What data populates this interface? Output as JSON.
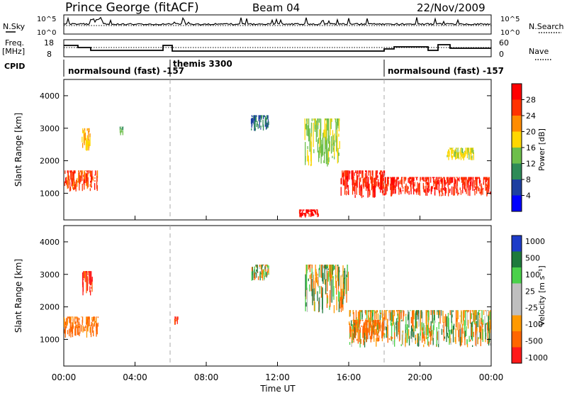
{
  "header": {
    "station": "Prince George (fitACF)",
    "beam": "Beam 04",
    "date": "22/Nov/2009"
  },
  "strip": {
    "nsky_label": "N.Sky",
    "nsearch_label": "N.Search",
    "freq_label": "Freq.",
    "freq_unit": "[MHz]",
    "nave_label": "Nave",
    "cpid_label": "CPID",
    "left_ticks_top": [
      "10^5",
      "10^0"
    ],
    "right_ticks_top": [
      "10^5",
      "10^0"
    ],
    "freq_ticks": [
      "18",
      "8"
    ],
    "nave_ticks": [
      "60",
      "0"
    ],
    "cpid_segments": [
      {
        "label": "normalsound (fast) -157",
        "start_h": 0,
        "end_h": 6
      },
      {
        "label": "themis 3300",
        "start_h": 6,
        "end_h": 18
      },
      {
        "label": "normalsound (fast) -157",
        "start_h": 18,
        "end_h": 24
      }
    ]
  },
  "axes": {
    "ylabel": "Slant Range [km]",
    "xlabel": "Time UT",
    "y_ticks": [
      "1000",
      "2000",
      "3000",
      "4000"
    ],
    "x_ticks": [
      "00:00",
      "04:00",
      "08:00",
      "12:00",
      "16:00",
      "20:00",
      "00:00"
    ]
  },
  "colorbars": {
    "power": {
      "title": "Power [dB]",
      "ticks": [
        "4",
        "8",
        "12",
        "16",
        "20",
        "24",
        "28"
      ],
      "colors": [
        "#0000ff",
        "#1d3fa0",
        "#2e8b57",
        "#6dbf4a",
        "#ffd700",
        "#ff8c00",
        "#ff3300",
        "#ff0000"
      ]
    },
    "velocity": {
      "title": "Velocity [m s⁻¹]",
      "ticks": [
        "1000",
        "500",
        "100",
        "25",
        "-25",
        "-100",
        "-500",
        "-1000"
      ],
      "colors": [
        "#1e3cc8",
        "#1e7a3c",
        "#4ad14a",
        "#bfbfbf",
        "#bfbfbf",
        "#ff9900",
        "#ff6600",
        "#ff1a1a"
      ]
    }
  },
  "chart_data": [
    {
      "type": "heatmap",
      "title": "Power [dB]",
      "xlabel": "Time UT",
      "ylabel": "Slant Range [km]",
      "xlim": [
        0,
        24
      ],
      "ylim": [
        180,
        4500
      ],
      "clim": [
        0,
        30
      ],
      "regions": [
        {
          "t0": 0.0,
          "t1": 1.9,
          "r0": 1050,
          "r1": 1700,
          "value": 24
        },
        {
          "t0": 1.0,
          "t1": 1.5,
          "r0": 2300,
          "r1": 3000,
          "value": 18
        },
        {
          "t0": 3.1,
          "t1": 3.3,
          "r0": 2750,
          "r1": 3050,
          "value": 10
        },
        {
          "t0": 10.5,
          "t1": 11.5,
          "r0": 2900,
          "r1": 3400,
          "value": 8
        },
        {
          "t0": 13.5,
          "t1": 15.5,
          "r0": 1800,
          "r1": 3300,
          "value": 14
        },
        {
          "t0": 15.5,
          "t1": 18.0,
          "r0": 850,
          "r1": 1700,
          "value": 26
        },
        {
          "t0": 18.0,
          "t1": 24.0,
          "r0": 900,
          "r1": 1500,
          "value": 26
        },
        {
          "t0": 21.5,
          "t1": 23.0,
          "r0": 2000,
          "r1": 2400,
          "value": 16
        },
        {
          "t0": 13.2,
          "t1": 14.3,
          "r0": 250,
          "r1": 500,
          "value": 28
        }
      ]
    },
    {
      "type": "heatmap",
      "title": "Velocity [m s⁻¹]",
      "xlabel": "Time UT",
      "ylabel": "Slant Range [km]",
      "xlim": [
        0,
        24
      ],
      "ylim": [
        180,
        4500
      ],
      "clim": [
        -1000,
        1000
      ],
      "regions": [
        {
          "t0": 0.0,
          "t1": 1.9,
          "r0": 1050,
          "r1": 1700,
          "value": -200
        },
        {
          "t0": 1.0,
          "t1": 1.6,
          "r0": 2300,
          "r1": 3100,
          "value": -600
        },
        {
          "t0": 6.2,
          "t1": 6.4,
          "r0": 1450,
          "r1": 1700,
          "value": -500
        },
        {
          "t0": 13.5,
          "t1": 16.0,
          "r0": 1800,
          "r1": 3300,
          "value": 0
        },
        {
          "t0": 16.0,
          "t1": 24.0,
          "r0": 750,
          "r1": 1900,
          "value": 0
        },
        {
          "t0": 16.2,
          "t1": 18.0,
          "r0": 900,
          "r1": 1600,
          "value": -200
        },
        {
          "t0": 10.5,
          "t1": 11.5,
          "r0": 2800,
          "r1": 3300,
          "value": 0
        }
      ]
    }
  ]
}
